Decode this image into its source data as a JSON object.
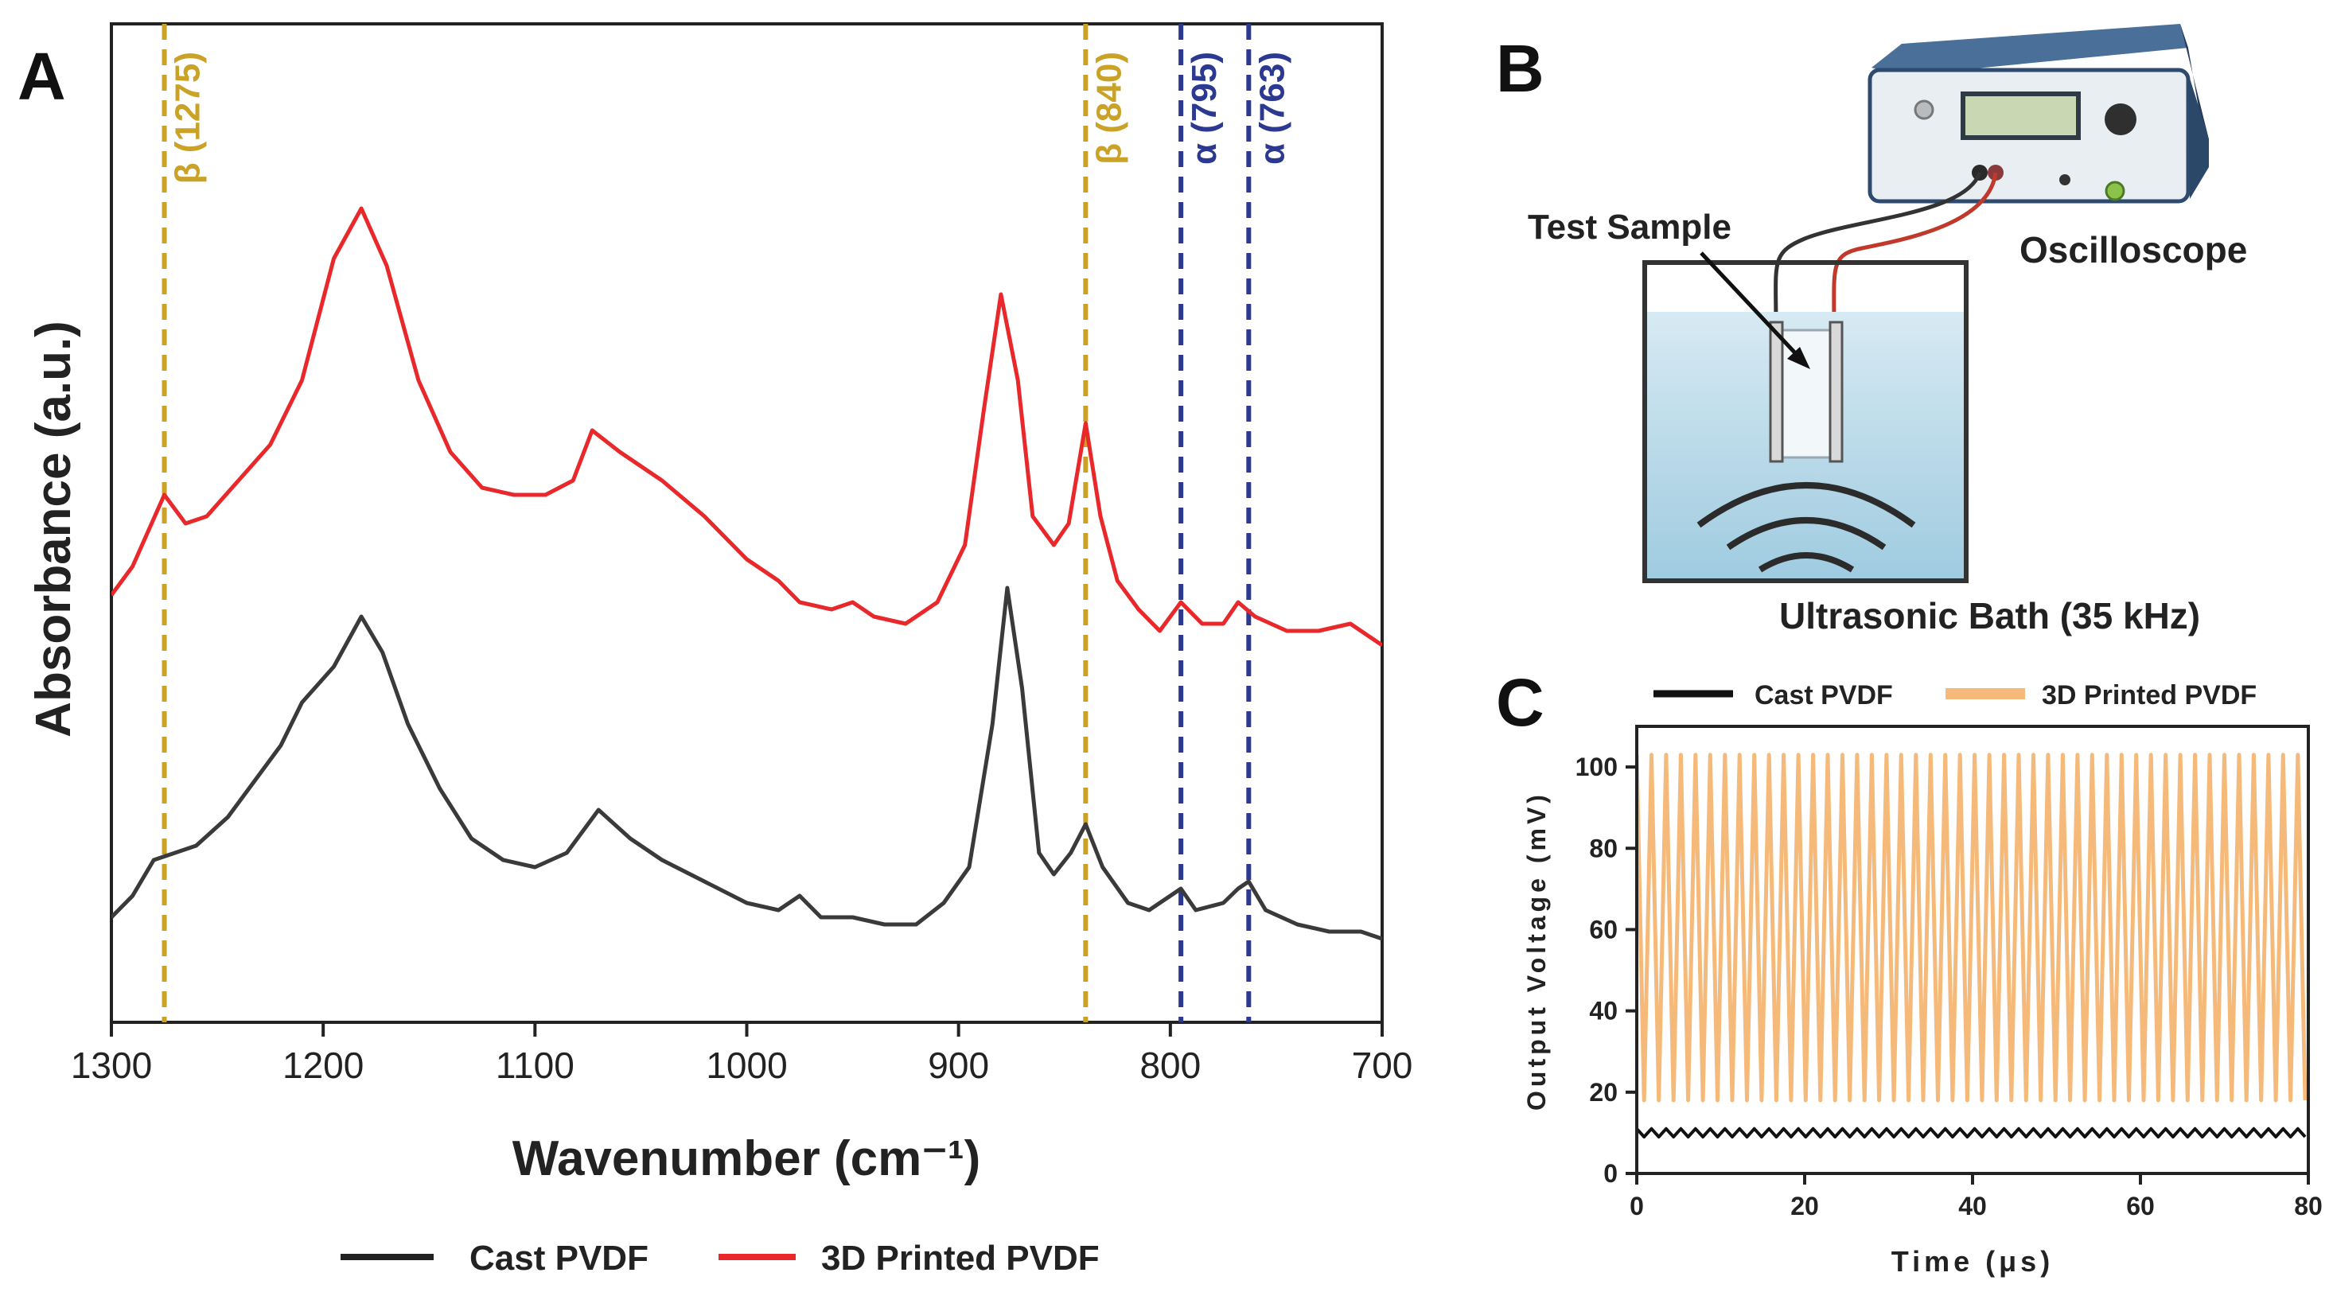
{
  "panels": {
    "a": {
      "letter": "A"
    },
    "b": {
      "letter": "B"
    },
    "c": {
      "letter": "C"
    }
  },
  "diagram": {
    "test_sample_label": "Test Sample",
    "oscilloscope_label": "Oscilloscope",
    "bath_label": "Ultrasonic Bath (35 kHz)"
  },
  "colors": {
    "cast": "#3a3a3a",
    "printed_ftir": "#e8282a",
    "printed_voltage": "#f5b97a",
    "beta_marker": "#c9a227",
    "alpha_marker": "#2b3990"
  },
  "chart_data": [
    {
      "type": "line",
      "title": "",
      "xlabel": "Wavenumber (cm⁻¹)",
      "ylabel": "Absorbance (a.u.)",
      "xlim": [
        1300,
        700
      ],
      "x_reversed": true,
      "x_ticks": [
        "1300",
        "1200",
        "1100",
        "1000",
        "900",
        "800",
        "700"
      ],
      "y_ticks_shown": false,
      "grid": false,
      "legend": {
        "position": "bottom",
        "entries": [
          "Cast PVDF",
          "3D Printed PVDF"
        ]
      },
      "markers": [
        {
          "x": 1275,
          "label": "β (1275)",
          "phase": "beta"
        },
        {
          "x": 840,
          "label": "β (840)",
          "phase": "beta"
        },
        {
          "x": 795,
          "label": "α (795)",
          "phase": "alpha"
        },
        {
          "x": 763,
          "label": "α (763)",
          "phase": "alpha"
        }
      ],
      "series": [
        {
          "name": "3D Printed PVDF",
          "points": [
            [
              1300,
              0.48
            ],
            [
              1290,
              0.52
            ],
            [
              1275,
              0.62
            ],
            [
              1265,
              0.58
            ],
            [
              1255,
              0.59
            ],
            [
              1240,
              0.64
            ],
            [
              1225,
              0.69
            ],
            [
              1210,
              0.78
            ],
            [
              1195,
              0.95
            ],
            [
              1182,
              1.02
            ],
            [
              1170,
              0.94
            ],
            [
              1155,
              0.78
            ],
            [
              1140,
              0.68
            ],
            [
              1125,
              0.63
            ],
            [
              1110,
              0.62
            ],
            [
              1095,
              0.62
            ],
            [
              1082,
              0.64
            ],
            [
              1073,
              0.71
            ],
            [
              1060,
              0.68
            ],
            [
              1040,
              0.64
            ],
            [
              1020,
              0.59
            ],
            [
              1000,
              0.53
            ],
            [
              985,
              0.5
            ],
            [
              975,
              0.47
            ],
            [
              960,
              0.46
            ],
            [
              950,
              0.47
            ],
            [
              940,
              0.45
            ],
            [
              925,
              0.44
            ],
            [
              910,
              0.47
            ],
            [
              897,
              0.55
            ],
            [
              888,
              0.74
            ],
            [
              880,
              0.9
            ],
            [
              872,
              0.78
            ],
            [
              865,
              0.59
            ],
            [
              855,
              0.55
            ],
            [
              848,
              0.58
            ],
            [
              840,
              0.72
            ],
            [
              833,
              0.59
            ],
            [
              825,
              0.5
            ],
            [
              815,
              0.46
            ],
            [
              805,
              0.43
            ],
            [
              795,
              0.47
            ],
            [
              785,
              0.44
            ],
            [
              775,
              0.44
            ],
            [
              768,
              0.47
            ],
            [
              760,
              0.45
            ],
            [
              745,
              0.43
            ],
            [
              730,
              0.43
            ],
            [
              715,
              0.44
            ],
            [
              700,
              0.41
            ]
          ]
        },
        {
          "name": "Cast PVDF",
          "points": [
            [
              1300,
              0.03
            ],
            [
              1290,
              0.06
            ],
            [
              1280,
              0.11
            ],
            [
              1270,
              0.12
            ],
            [
              1260,
              0.13
            ],
            [
              1245,
              0.17
            ],
            [
              1230,
              0.23
            ],
            [
              1220,
              0.27
            ],
            [
              1210,
              0.33
            ],
            [
              1195,
              0.38
            ],
            [
              1182,
              0.45
            ],
            [
              1172,
              0.4
            ],
            [
              1160,
              0.3
            ],
            [
              1145,
              0.21
            ],
            [
              1130,
              0.14
            ],
            [
              1115,
              0.11
            ],
            [
              1100,
              0.1
            ],
            [
              1085,
              0.12
            ],
            [
              1070,
              0.18
            ],
            [
              1055,
              0.14
            ],
            [
              1040,
              0.11
            ],
            [
              1020,
              0.08
            ],
            [
              1000,
              0.05
            ],
            [
              985,
              0.04
            ],
            [
              975,
              0.06
            ],
            [
              965,
              0.03
            ],
            [
              950,
              0.03
            ],
            [
              935,
              0.02
            ],
            [
              920,
              0.02
            ],
            [
              907,
              0.05
            ],
            [
              895,
              0.1
            ],
            [
              884,
              0.3
            ],
            [
              877,
              0.49
            ],
            [
              870,
              0.35
            ],
            [
              862,
              0.12
            ],
            [
              855,
              0.09
            ],
            [
              847,
              0.12
            ],
            [
              840,
              0.16
            ],
            [
              832,
              0.1
            ],
            [
              820,
              0.05
            ],
            [
              810,
              0.04
            ],
            [
              800,
              0.06
            ],
            [
              795,
              0.07
            ],
            [
              788,
              0.04
            ],
            [
              775,
              0.05
            ],
            [
              768,
              0.07
            ],
            [
              763,
              0.08
            ],
            [
              755,
              0.04
            ],
            [
              740,
              0.02
            ],
            [
              725,
              0.01
            ],
            [
              710,
              0.01
            ],
            [
              700,
              0.0
            ]
          ]
        }
      ]
    },
    {
      "type": "line",
      "title": "",
      "xlabel": "Time (μs)",
      "ylabel": "Output Voltage (mV)",
      "xlim": [
        0,
        80
      ],
      "ylim": [
        0,
        110
      ],
      "x_ticks": [
        "0",
        "20",
        "40",
        "60",
        "80"
      ],
      "y_ticks": [
        "0",
        "20",
        "40",
        "60",
        "80",
        "100"
      ],
      "grid": false,
      "legend": {
        "position": "top",
        "entries": [
          "Cast PVDF",
          "3D Printed PVDF"
        ]
      },
      "series": [
        {
          "name": "3D Printed PVDF",
          "period_us": 1.75,
          "min_mV": 18,
          "max_mV": 103
        },
        {
          "name": "Cast PVDF",
          "period_us": 1.75,
          "min_mV": 9,
          "max_mV": 11
        }
      ]
    }
  ]
}
